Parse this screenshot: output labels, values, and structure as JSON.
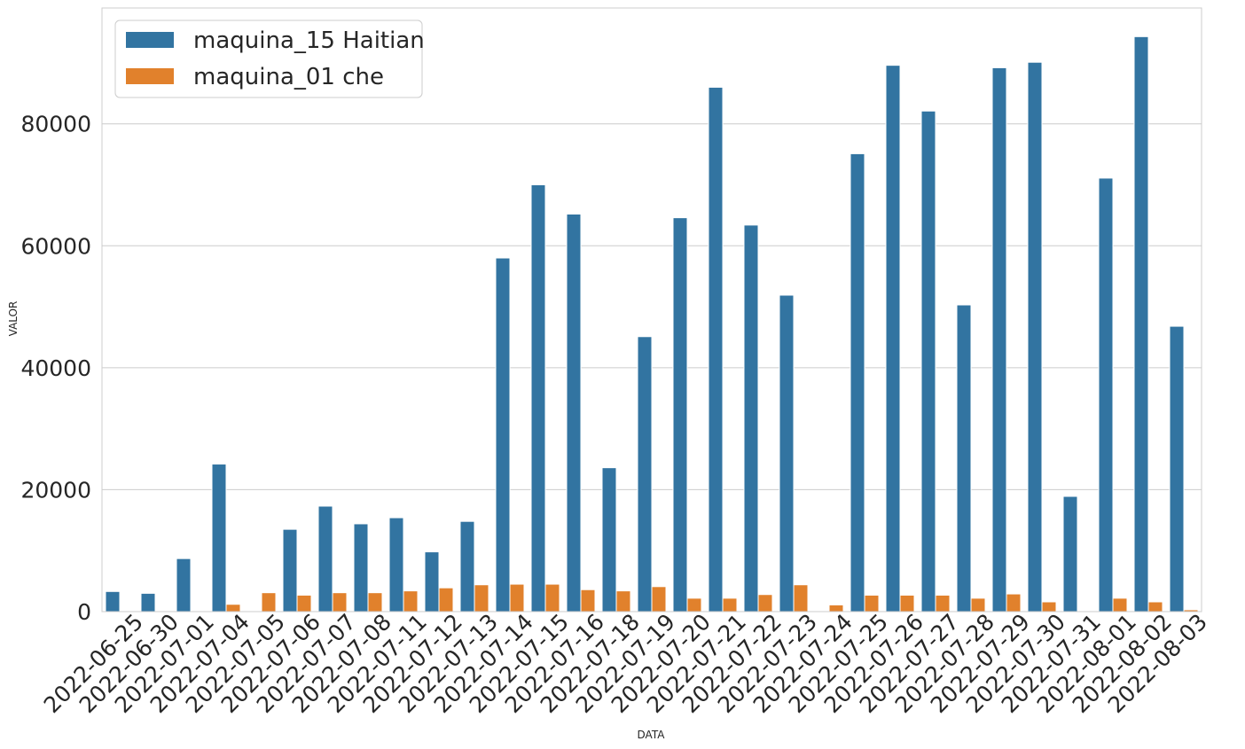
{
  "chart_data": {
    "type": "bar",
    "title": "",
    "xlabel": "DATA",
    "ylabel": "VALOR",
    "ylim": [
      0,
      99000
    ],
    "yticks": [
      0,
      20000,
      40000,
      60000,
      80000
    ],
    "grid": "y-major",
    "legend_position": "top-left",
    "categories": [
      "2022-06-25",
      "2022-06-30",
      "2022-07-01",
      "2022-07-04",
      "2022-07-05",
      "2022-07-06",
      "2022-07-07",
      "2022-07-08",
      "2022-07-11",
      "2022-07-12",
      "2022-07-13",
      "2022-07-14",
      "2022-07-15",
      "2022-07-16",
      "2022-07-18",
      "2022-07-19",
      "2022-07-20",
      "2022-07-21",
      "2022-07-22",
      "2022-07-23",
      "2022-07-24",
      "2022-07-25",
      "2022-07-26",
      "2022-07-27",
      "2022-07-28",
      "2022-07-29",
      "2022-07-30",
      "2022-07-31",
      "2022-08-01",
      "2022-08-02",
      "2022-08-03"
    ],
    "series": [
      {
        "name": "maquina_15 Haitian",
        "color": "#3274a1",
        "values": [
          3300,
          3000,
          8700,
          24200,
          0,
          13500,
          17300,
          14400,
          15400,
          9800,
          14800,
          58000,
          70000,
          65200,
          23600,
          45100,
          64600,
          86000,
          63400,
          51900,
          0,
          75100,
          89600,
          82100,
          50300,
          89200,
          90100,
          18900,
          71100,
          94300,
          46800
        ]
      },
      {
        "name": "maquina_01 che",
        "color": "#e1812c",
        "values": [
          0,
          0,
          0,
          1200,
          3100,
          2700,
          3100,
          3100,
          3400,
          3900,
          4400,
          4500,
          4500,
          3600,
          3400,
          4100,
          2200,
          2200,
          2800,
          4400,
          1100,
          2700,
          2700,
          2700,
          2200,
          2900,
          1600,
          0,
          2200,
          1600,
          300
        ]
      }
    ]
  }
}
